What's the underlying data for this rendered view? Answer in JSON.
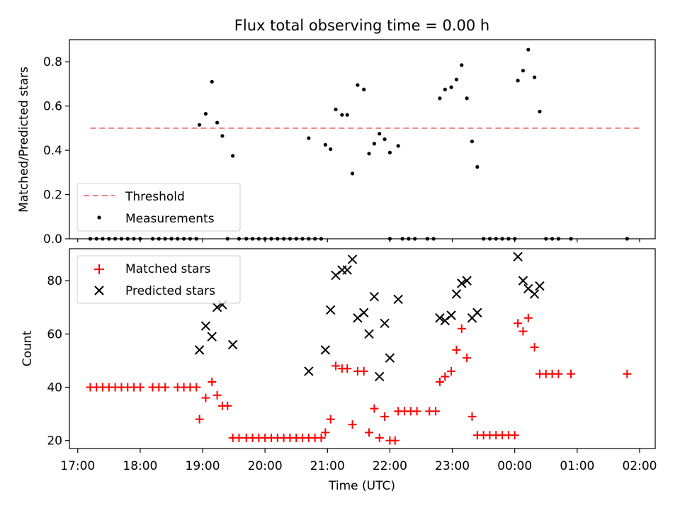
{
  "chart_data": [
    {
      "type": "scatter",
      "title": "Flux total observing time = 0.00 h",
      "xlabel": "",
      "ylabel": "Matched/Predicted stars",
      "ylim": [
        0,
        0.9
      ],
      "xlim": [
        "16:52",
        "02:15"
      ],
      "yticks": [
        "0.0",
        "0.2",
        "0.4",
        "0.6",
        "0.8"
      ],
      "grid": false,
      "legend_position": "lower-left",
      "threshold": {
        "name": "Threshold",
        "y": 0.5,
        "x_start": "17:12",
        "x_end": "02:00",
        "color": "#f08080",
        "style": "dashed"
      },
      "series": [
        {
          "name": "Measurements",
          "color": "#000000",
          "marker": "dot",
          "points": [
            [
              "17:12",
              0.0
            ],
            [
              "17:18",
              0.0
            ],
            [
              "17:24",
              0.0
            ],
            [
              "17:30",
              0.0
            ],
            [
              "17:36",
              0.0
            ],
            [
              "17:42",
              0.0
            ],
            [
              "17:48",
              0.0
            ],
            [
              "17:54",
              0.0
            ],
            [
              "18:00",
              0.0
            ],
            [
              "18:12",
              0.0
            ],
            [
              "18:18",
              0.0
            ],
            [
              "18:24",
              0.0
            ],
            [
              "18:30",
              0.0
            ],
            [
              "18:36",
              0.0
            ],
            [
              "18:42",
              0.0
            ],
            [
              "18:48",
              0.0
            ],
            [
              "18:54",
              0.0
            ],
            [
              "18:57",
              0.515
            ],
            [
              "19:03",
              0.565
            ],
            [
              "19:09",
              0.71
            ],
            [
              "19:14",
              0.525
            ],
            [
              "19:19",
              0.465
            ],
            [
              "19:24",
              0.0
            ],
            [
              "19:29",
              0.375
            ],
            [
              "19:35",
              0.0
            ],
            [
              "19:42",
              0.0
            ],
            [
              "19:48",
              0.0
            ],
            [
              "19:54",
              0.0
            ],
            [
              "20:00",
              0.0
            ],
            [
              "20:06",
              0.0
            ],
            [
              "20:12",
              0.0
            ],
            [
              "20:18",
              0.0
            ],
            [
              "20:24",
              0.0
            ],
            [
              "20:30",
              0.0
            ],
            [
              "20:36",
              0.0
            ],
            [
              "20:42",
              0.0
            ],
            [
              "20:48",
              0.0
            ],
            [
              "20:54",
              0.0
            ],
            [
              "20:42",
              0.455
            ],
            [
              "20:58",
              0.425
            ],
            [
              "21:03",
              0.405
            ],
            [
              "21:08",
              0.585
            ],
            [
              "21:14",
              0.56
            ],
            [
              "21:19",
              0.56
            ],
            [
              "21:24",
              0.295
            ],
            [
              "21:29",
              0.695
            ],
            [
              "21:35",
              0.675
            ],
            [
              "21:40",
              0.385
            ],
            [
              "21:45",
              0.43
            ],
            [
              "21:50",
              0.475
            ],
            [
              "21:55",
              0.45
            ],
            [
              "22:00",
              0.39
            ],
            [
              "22:08",
              0.42
            ],
            [
              "22:00",
              0.0
            ],
            [
              "22:12",
              0.0
            ],
            [
              "22:18",
              0.0
            ],
            [
              "22:24",
              0.0
            ],
            [
              "22:36",
              0.0
            ],
            [
              "22:42",
              0.0
            ],
            [
              "22:48",
              0.635
            ],
            [
              "22:53",
              0.675
            ],
            [
              "22:59",
              0.685
            ],
            [
              "23:04",
              0.72
            ],
            [
              "23:09",
              0.785
            ],
            [
              "23:14",
              0.635
            ],
            [
              "23:19",
              0.44
            ],
            [
              "23:24",
              0.325
            ],
            [
              "23:30",
              0.0
            ],
            [
              "23:36",
              0.0
            ],
            [
              "23:42",
              0.0
            ],
            [
              "23:48",
              0.0
            ],
            [
              "23:54",
              0.0
            ],
            [
              "00:00",
              0.0
            ],
            [
              "00:03",
              0.715
            ],
            [
              "00:08",
              0.76
            ],
            [
              "00:13",
              0.855
            ],
            [
              "00:19",
              0.73
            ],
            [
              "00:24",
              0.575
            ],
            [
              "00:30",
              0.0
            ],
            [
              "00:36",
              0.0
            ],
            [
              "00:42",
              0.0
            ],
            [
              "00:54",
              0.0
            ],
            [
              "01:48",
              0.0
            ]
          ]
        }
      ]
    },
    {
      "type": "scatter",
      "title": "",
      "xlabel": "Time (UTC)",
      "ylabel": "Count",
      "ylim": [
        17,
        92
      ],
      "xlim": [
        "16:52",
        "02:15"
      ],
      "xticks": [
        "17:00",
        "18:00",
        "19:00",
        "20:00",
        "21:00",
        "22:00",
        "23:00",
        "00:00",
        "01:00",
        "02:00"
      ],
      "yticks": [
        "20",
        "40",
        "60",
        "80"
      ],
      "grid": false,
      "legend_position": "upper-left",
      "series": [
        {
          "name": "Matched stars",
          "color": "#ff0000",
          "marker": "plus",
          "points": [
            [
              "17:12",
              40
            ],
            [
              "17:18",
              40
            ],
            [
              "17:24",
              40
            ],
            [
              "17:30",
              40
            ],
            [
              "17:36",
              40
            ],
            [
              "17:42",
              40
            ],
            [
              "17:48",
              40
            ],
            [
              "17:54",
              40
            ],
            [
              "18:00",
              40
            ],
            [
              "18:12",
              40
            ],
            [
              "18:18",
              40
            ],
            [
              "18:24",
              40
            ],
            [
              "18:36",
              40
            ],
            [
              "18:42",
              40
            ],
            [
              "18:48",
              40
            ],
            [
              "18:54",
              40
            ],
            [
              "18:57",
              28
            ],
            [
              "19:03",
              36
            ],
            [
              "19:09",
              42
            ],
            [
              "19:14",
              37
            ],
            [
              "19:19",
              33
            ],
            [
              "19:24",
              33
            ],
            [
              "19:29",
              21
            ],
            [
              "19:35",
              21
            ],
            [
              "19:42",
              21
            ],
            [
              "19:48",
              21
            ],
            [
              "19:54",
              21
            ],
            [
              "20:00",
              21
            ],
            [
              "20:06",
              21
            ],
            [
              "20:12",
              21
            ],
            [
              "20:18",
              21
            ],
            [
              "20:24",
              21
            ],
            [
              "20:30",
              21
            ],
            [
              "20:36",
              21
            ],
            [
              "20:42",
              21
            ],
            [
              "20:48",
              21
            ],
            [
              "20:54",
              21
            ],
            [
              "20:58",
              23
            ],
            [
              "21:03",
              28
            ],
            [
              "21:08",
              48
            ],
            [
              "21:14",
              47
            ],
            [
              "21:19",
              47
            ],
            [
              "21:24",
              26
            ],
            [
              "21:29",
              46
            ],
            [
              "21:35",
              46
            ],
            [
              "21:40",
              23
            ],
            [
              "21:45",
              32
            ],
            [
              "21:50",
              21
            ],
            [
              "21:55",
              29
            ],
            [
              "22:00",
              20
            ],
            [
              "22:05",
              20
            ],
            [
              "22:08",
              31
            ],
            [
              "22:14",
              31
            ],
            [
              "22:20",
              31
            ],
            [
              "22:26",
              31
            ],
            [
              "22:38",
              31
            ],
            [
              "22:44",
              31
            ],
            [
              "22:48",
              42
            ],
            [
              "22:53",
              44
            ],
            [
              "22:59",
              46
            ],
            [
              "23:04",
              54
            ],
            [
              "23:09",
              62
            ],
            [
              "23:14",
              51
            ],
            [
              "23:19",
              29
            ],
            [
              "23:24",
              22
            ],
            [
              "23:30",
              22
            ],
            [
              "23:36",
              22
            ],
            [
              "23:42",
              22
            ],
            [
              "23:48",
              22
            ],
            [
              "23:54",
              22
            ],
            [
              "00:00",
              22
            ],
            [
              "00:03",
              64
            ],
            [
              "00:08",
              61
            ],
            [
              "00:13",
              66
            ],
            [
              "00:19",
              55
            ],
            [
              "00:24",
              45
            ],
            [
              "00:30",
              45
            ],
            [
              "00:36",
              45
            ],
            [
              "00:42",
              45
            ],
            [
              "00:54",
              45
            ],
            [
              "01:48",
              45
            ]
          ]
        },
        {
          "name": "Predicted stars",
          "color": "#000000",
          "marker": "x",
          "points": [
            [
              "18:57",
              54
            ],
            [
              "19:03",
              63
            ],
            [
              "19:09",
              59
            ],
            [
              "19:14",
              70
            ],
            [
              "19:19",
              71
            ],
            [
              "19:29",
              56
            ],
            [
              "20:42",
              46
            ],
            [
              "20:58",
              54
            ],
            [
              "21:03",
              69
            ],
            [
              "21:08",
              82
            ],
            [
              "21:14",
              84
            ],
            [
              "21:19",
              84
            ],
            [
              "21:24",
              88
            ],
            [
              "21:29",
              66
            ],
            [
              "21:35",
              68
            ],
            [
              "21:40",
              60
            ],
            [
              "21:45",
              74
            ],
            [
              "21:50",
              44
            ],
            [
              "21:55",
              64
            ],
            [
              "22:00",
              51
            ],
            [
              "22:08",
              73
            ],
            [
              "22:48",
              66
            ],
            [
              "22:53",
              65
            ],
            [
              "22:59",
              67
            ],
            [
              "23:04",
              75
            ],
            [
              "23:09",
              79
            ],
            [
              "23:14",
              80
            ],
            [
              "23:19",
              66
            ],
            [
              "23:24",
              68
            ],
            [
              "00:03",
              89
            ],
            [
              "00:08",
              80
            ],
            [
              "00:13",
              77
            ],
            [
              "00:19",
              75
            ],
            [
              "00:24",
              78
            ]
          ]
        }
      ]
    }
  ]
}
